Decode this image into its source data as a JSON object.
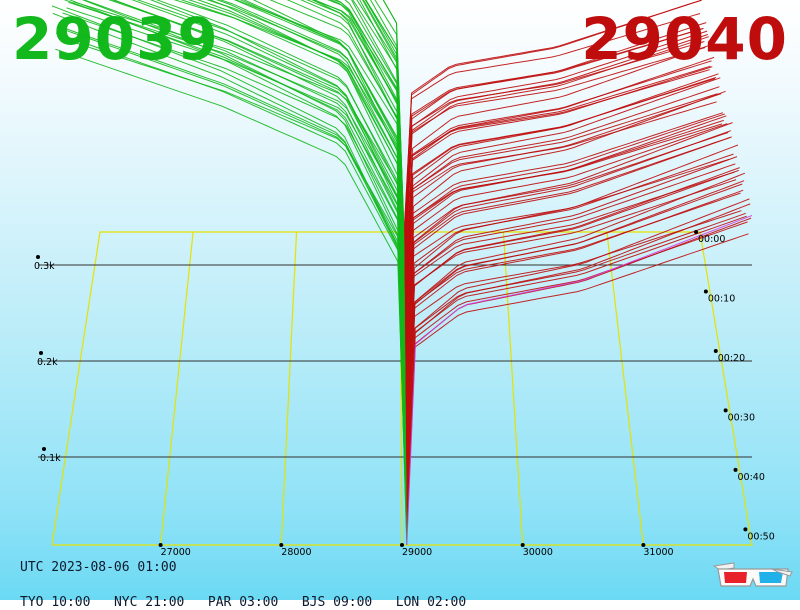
{
  "bid_price": "29039",
  "ask_price": "29040",
  "colors": {
    "bid": "#12b81c",
    "ask": "#bf0d0d",
    "axis_grid": "#e5e200",
    "depth_grid": "#333333",
    "current_ask": "#d040e0"
  },
  "chart_data": {
    "type": "area",
    "chart_style": "3d order-book depth history",
    "x_ticks": [
      "27000",
      "28000",
      "29000",
      "30000",
      "31000"
    ],
    "x_tick_values": [
      27000,
      28000,
      29000,
      30000,
      31000
    ],
    "time_ticks": [
      "00:00",
      "00:10",
      "00:20",
      "00:30",
      "00:40",
      "00:50"
    ],
    "depth_ticks": [
      "0.1k",
      "0.2k",
      "0.3k"
    ],
    "depth_tick_values": [
      100,
      200,
      300
    ],
    "xlim": [
      26100,
      31900
    ],
    "mid_price": 29039.5,
    "snapshot_count": 60,
    "series": [
      {
        "name": "bid",
        "side": "left",
        "depth_at_x": [
          [
            26100,
            540
          ],
          [
            27500,
            475
          ],
          [
            28500,
            415
          ],
          [
            29000,
            290
          ],
          [
            29039,
            0
          ]
        ]
      },
      {
        "name": "ask",
        "side": "right",
        "depth_at_x": [
          [
            29040,
            0
          ],
          [
            29050,
            195
          ],
          [
            29500,
            240
          ],
          [
            30500,
            265
          ],
          [
            31900,
            330
          ]
        ]
      }
    ],
    "grid": true
  },
  "footer": {
    "utc": "UTC 2023-08-06 01:00",
    "times": [
      {
        "code": "TYO",
        "time": "10:00"
      },
      {
        "code": "NYC",
        "time": "21:00"
      },
      {
        "code": "PAR",
        "time": "03:00"
      },
      {
        "code": "BJS",
        "time": "09:00"
      },
      {
        "code": "LON",
        "time": "02:00"
      }
    ]
  },
  "icon": "3d-glasses-icon"
}
